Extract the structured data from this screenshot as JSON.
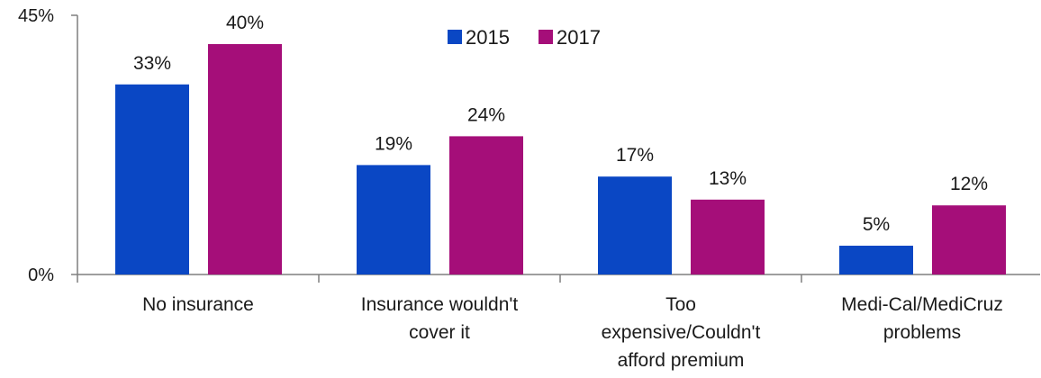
{
  "chart_data": {
    "type": "bar",
    "categories": [
      [
        "No insurance"
      ],
      [
        "Insurance wouldn't",
        "cover it"
      ],
      [
        "Too",
        "expensive/Couldn't",
        "afford premium"
      ],
      [
        "Medi-Cal/MediCruz",
        "problems"
      ]
    ],
    "series": [
      {
        "name": "2015",
        "values": [
          33,
          19,
          17,
          5
        ],
        "labels": [
          "33%",
          "19%",
          "17%",
          "5%"
        ],
        "color": "#0a47c4"
      },
      {
        "name": "2017",
        "values": [
          40,
          24,
          13,
          12
        ],
        "labels": [
          "40%",
          "24%",
          "13%",
          "12%"
        ],
        "color": "#a50e79"
      }
    ],
    "ylim": [
      0,
      45
    ],
    "yticks": [
      {
        "value": 0,
        "label": "0%"
      },
      {
        "value": 45,
        "label": "45%"
      }
    ],
    "grid": false,
    "legend_position": "top-center",
    "axis_color": "#7f7f7f"
  }
}
